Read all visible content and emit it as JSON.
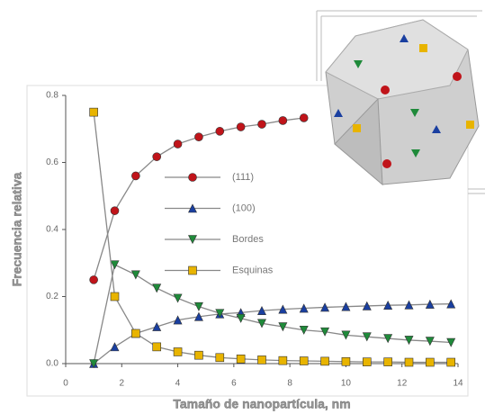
{
  "chart_data": {
    "type": "line",
    "x_label": "Tamaño de nanopartícula, nm",
    "y_label": "Frecuencia relativa",
    "x": [
      1,
      1.75,
      2.5,
      3.25,
      4,
      4.75,
      5.5,
      6.25,
      7,
      7.75,
      8.5,
      9.25,
      10,
      10.75,
      11.5,
      12.25,
      13,
      13.75
    ],
    "series": [
      {
        "name": "(111)",
        "color": "#c0141a",
        "marker": "circle",
        "values": [
          0.25,
          0.456,
          0.56,
          0.617,
          0.655,
          0.676,
          0.693,
          0.706,
          0.714,
          0.725,
          0.733,
          null,
          null,
          null,
          null,
          null,
          null,
          null
        ]
      },
      {
        "name": "(100)",
        "color": "#1a3fa0",
        "marker": "triangle-up",
        "values": [
          0.0,
          0.05,
          0.09,
          0.11,
          0.13,
          0.14,
          0.148,
          0.152,
          0.158,
          0.162,
          0.165,
          0.168,
          0.17,
          0.172,
          0.174,
          0.175,
          0.177,
          0.178
        ]
      },
      {
        "name": "Bordes",
        "color": "#1f8a3a",
        "marker": "triangle-down",
        "values": [
          0.0,
          0.295,
          0.265,
          0.225,
          0.195,
          0.17,
          0.15,
          0.135,
          0.12,
          0.11,
          0.1,
          0.095,
          0.085,
          0.08,
          0.075,
          0.07,
          0.067,
          0.063
        ]
      },
      {
        "name": "Esquinas",
        "color": "#e8b400",
        "marker": "square",
        "values": [
          0.75,
          0.2,
          0.09,
          0.05,
          0.035,
          0.025,
          0.018,
          0.014,
          0.011,
          0.009,
          0.008,
          0.007,
          0.006,
          0.005,
          0.005,
          0.004,
          0.004,
          0.004
        ]
      }
    ],
    "xlim": [
      0,
      14
    ],
    "xticks": [
      0,
      2,
      4,
      6,
      8,
      10,
      12,
      14
    ],
    "ylim": [
      0,
      0.8
    ],
    "yticks": [
      {
        "value": 0,
        "label": "0.0"
      },
      0.2,
      0.4,
      0.6,
      0.8
    ]
  }
}
